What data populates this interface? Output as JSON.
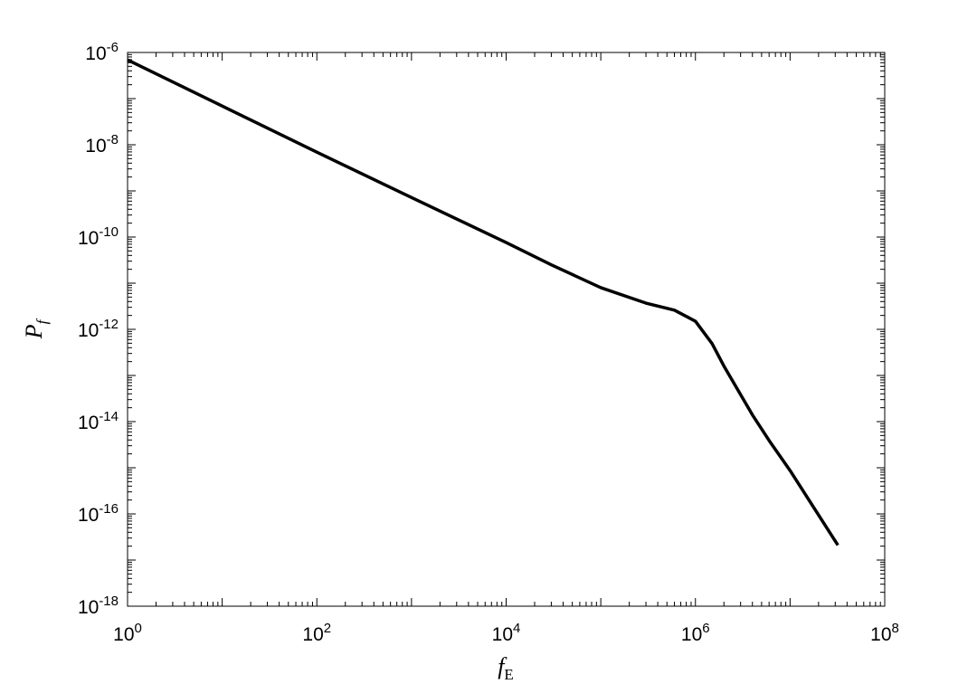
{
  "chart_data": {
    "type": "line",
    "x_label": "fE",
    "y_label": "Pf",
    "x": [
      1,
      10,
      100,
      1000,
      10000,
      30000,
      100000,
      300000,
      600000,
      1000000,
      1500000,
      2000000,
      4000000,
      6000000,
      10000000,
      32000000
    ],
    "series": [
      {
        "color": "#000000",
        "values": [
          6.9e-07,
          6.9e-08,
          6.9e-09,
          7.2e-10,
          7.6e-11,
          2.5e-11,
          8e-12,
          3.7e-12,
          2.6e-12,
          1.5e-12,
          4.9e-13,
          1.6e-13,
          1.4e-14,
          3.9e-15,
          8.7e-16,
          2.1e-17
        ]
      }
    ],
    "xlim": [
      1,
      100000000
    ],
    "ylim": [
      1e-18,
      1e-06
    ],
    "xticks": [
      {
        "value": 1,
        "label": "100"
      },
      {
        "value": 100,
        "label": "102"
      },
      {
        "value": 10000,
        "label": "104"
      },
      {
        "value": 1000000,
        "label": "106"
      },
      {
        "value": 100000000,
        "label": "108"
      }
    ],
    "yticks": [
      {
        "value": 1e-18,
        "label": "10-18"
      },
      {
        "value": 1e-16,
        "label": "10-16"
      },
      {
        "value": 1e-14,
        "label": "10-14"
      },
      {
        "value": 1e-12,
        "label": "10-12"
      },
      {
        "value": 1e-10,
        "label": "10-10"
      },
      {
        "value": 1e-08,
        "label": "10-8"
      },
      {
        "value": 1e-06,
        "label": "10-6"
      }
    ],
    "xscale": "log",
    "yscale": "log",
    "minor_ticks": true,
    "grid": false
  }
}
